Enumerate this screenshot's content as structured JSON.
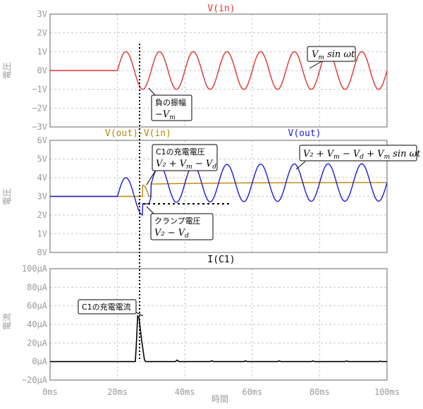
{
  "chart_data": [
    {
      "type": "line",
      "title": "V(in)",
      "ylabel": "電圧",
      "xlim": [
        0,
        100
      ],
      "ylim": [
        -3,
        3
      ],
      "yticks": [
        "3V",
        "2V",
        "1V",
        "0V",
        "−1V",
        "−2V",
        "−3V"
      ],
      "grid": true,
      "series": [
        {
          "name": "V(in)",
          "color": "#e0332f",
          "start_ms": 20,
          "period_ms": 10,
          "amplitude_v": 1,
          "offset_v": 0
        }
      ],
      "annotations": [
        {
          "label": "V",
          "sub": "m",
          "rest": " sin ωt"
        },
        {
          "label": "負の振幅",
          "math": "−V",
          "sub": "m"
        }
      ]
    },
    {
      "type": "line",
      "title": "",
      "ylabel": "電圧",
      "xlim": [
        0,
        100
      ],
      "ylim": [
        0,
        6
      ],
      "yticks": [
        "6V",
        "5V",
        "4V",
        "3V",
        "2V",
        "1V",
        "0V"
      ],
      "grid": true,
      "series": [
        {
          "name": "V(out)-V(in)",
          "color": "#b8860b",
          "initial_v": 3,
          "charged_v": 3.75
        },
        {
          "name": "V(out)",
          "color": "#1a1adc",
          "offset_v": 3,
          "amplitude_v": 1,
          "charged_offset_v": 3.75,
          "clamp_v": 2.6,
          "start_ms": 20,
          "period_ms": 10
        }
      ],
      "series_labels": [
        "V(out)-V(in)",
        "V(out)"
      ],
      "annotations": [
        {
          "label": "C1の充電電圧",
          "math": "V₂ + V",
          "sub": "m",
          "rest": " − V",
          "sub2": "d"
        },
        {
          "math": "V₂ + V",
          "sub": "m",
          "rest": " − V",
          "sub2": "d",
          "rest2": " + V",
          "sub3": "m",
          "rest3": " sin ωt"
        },
        {
          "label": "クランプ電圧",
          "math": "V₂ − V",
          "sub": "d"
        }
      ]
    },
    {
      "type": "line",
      "title": "I(C1)",
      "ylabel": "電流",
      "xlabel": "時間",
      "xlim": [
        0,
        100
      ],
      "ylim": [
        -20,
        100
      ],
      "yticks": [
        "100μA",
        "80μA",
        "60μA",
        "40μA",
        "20μA",
        "0μA",
        "−20μA"
      ],
      "xticks": [
        "0ms",
        "20ms",
        "40ms",
        "60ms",
        "80ms",
        "100ms"
      ],
      "grid": true,
      "series": [
        {
          "name": "I(C1)",
          "color": "#000000",
          "peak_ua": 49,
          "peak_ms": 26
        }
      ],
      "annotations": [
        {
          "label": "C1の充電電流"
        }
      ]
    }
  ]
}
